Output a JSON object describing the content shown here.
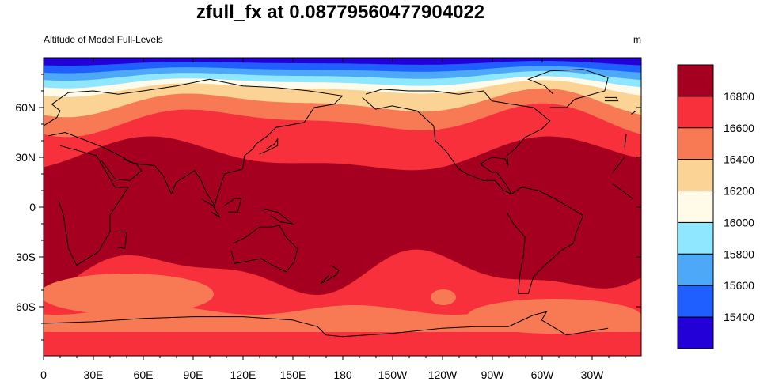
{
  "chart_data": {
    "type": "heatmap",
    "title": "zfull_fx at 0.08779560477904022",
    "left_string": "Altitude of Model Full-Levels",
    "units": "m",
    "x_ticks": [
      "0",
      "30E",
      "60E",
      "90E",
      "120E",
      "150E",
      "180",
      "150W",
      "120W",
      "90W",
      "60W",
      "30W"
    ],
    "y_ticks": [
      "60N",
      "30N",
      "0",
      "30S",
      "60S"
    ],
    "colorbar": {
      "levels": [
        15400,
        15600,
        15800,
        16000,
        16200,
        16400,
        16600,
        16800
      ],
      "colors": [
        "#2400d8",
        "#1f5fff",
        "#4ea8f8",
        "#8ee6ff",
        "#fffbe8",
        "#fbd394",
        "#f77a55",
        "#f7303c",
        "#a60021"
      ]
    },
    "field_description": "Geopotential altitude of the model full level; highest (>16800 m) over the tropics between about 30S and 35N, decreasing poleward to below 15400 m near the north pole."
  }
}
